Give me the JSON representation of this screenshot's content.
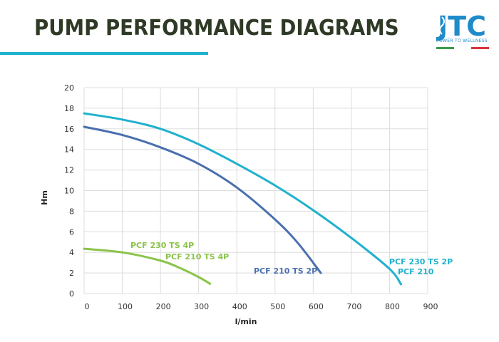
{
  "header": {
    "title": "PUMP PERFORMANCE DIAGRAMS",
    "logo_text": "JTC",
    "logo_tagline": "POWER TO WELLNESS"
  },
  "colors": {
    "accent": "#1fb1ce",
    "title": "#2f3a26",
    "flag_green": "#3a9a4a",
    "flag_white": "#ffffff",
    "flag_red": "#d8343b",
    "logo": "#1f8bc9"
  },
  "chart_data": {
    "type": "line",
    "xlabel": "l/min",
    "ylabel": "Hm",
    "xlim": [
      0,
      900
    ],
    "ylim": [
      0,
      20
    ],
    "xticks": [
      0,
      100,
      200,
      300,
      400,
      500,
      600,
      700,
      800,
      900
    ],
    "yticks": [
      0,
      2,
      4,
      6,
      8,
      10,
      12,
      14,
      16,
      18,
      20
    ],
    "grid": true,
    "series": [
      {
        "name": "PCF 230 TS 2P",
        "name2": "PCF 210",
        "color": "#1fb1ce",
        "x": [
          0,
          100,
          200,
          300,
          400,
          500,
          600,
          700,
          800,
          830
        ],
        "y": [
          17.5,
          16.9,
          16.0,
          14.5,
          12.6,
          10.5,
          8.1,
          5.4,
          2.4,
          0.9
        ]
      },
      {
        "name": "PCF 210 TS 2P",
        "color": "#4a6fae",
        "x": [
          0,
          100,
          200,
          300,
          400,
          500,
          560,
          620
        ],
        "y": [
          16.2,
          15.4,
          14.2,
          12.6,
          10.3,
          7.2,
          4.9,
          2.0
        ]
      },
      {
        "name": "PCF 230 TS 4P",
        "name2": "PCF 210 TS 4P",
        "color": "#8bc34a",
        "x": [
          0,
          100,
          200,
          250,
          300,
          330
        ],
        "y": [
          4.35,
          4.0,
          3.2,
          2.5,
          1.6,
          0.95
        ]
      }
    ]
  }
}
